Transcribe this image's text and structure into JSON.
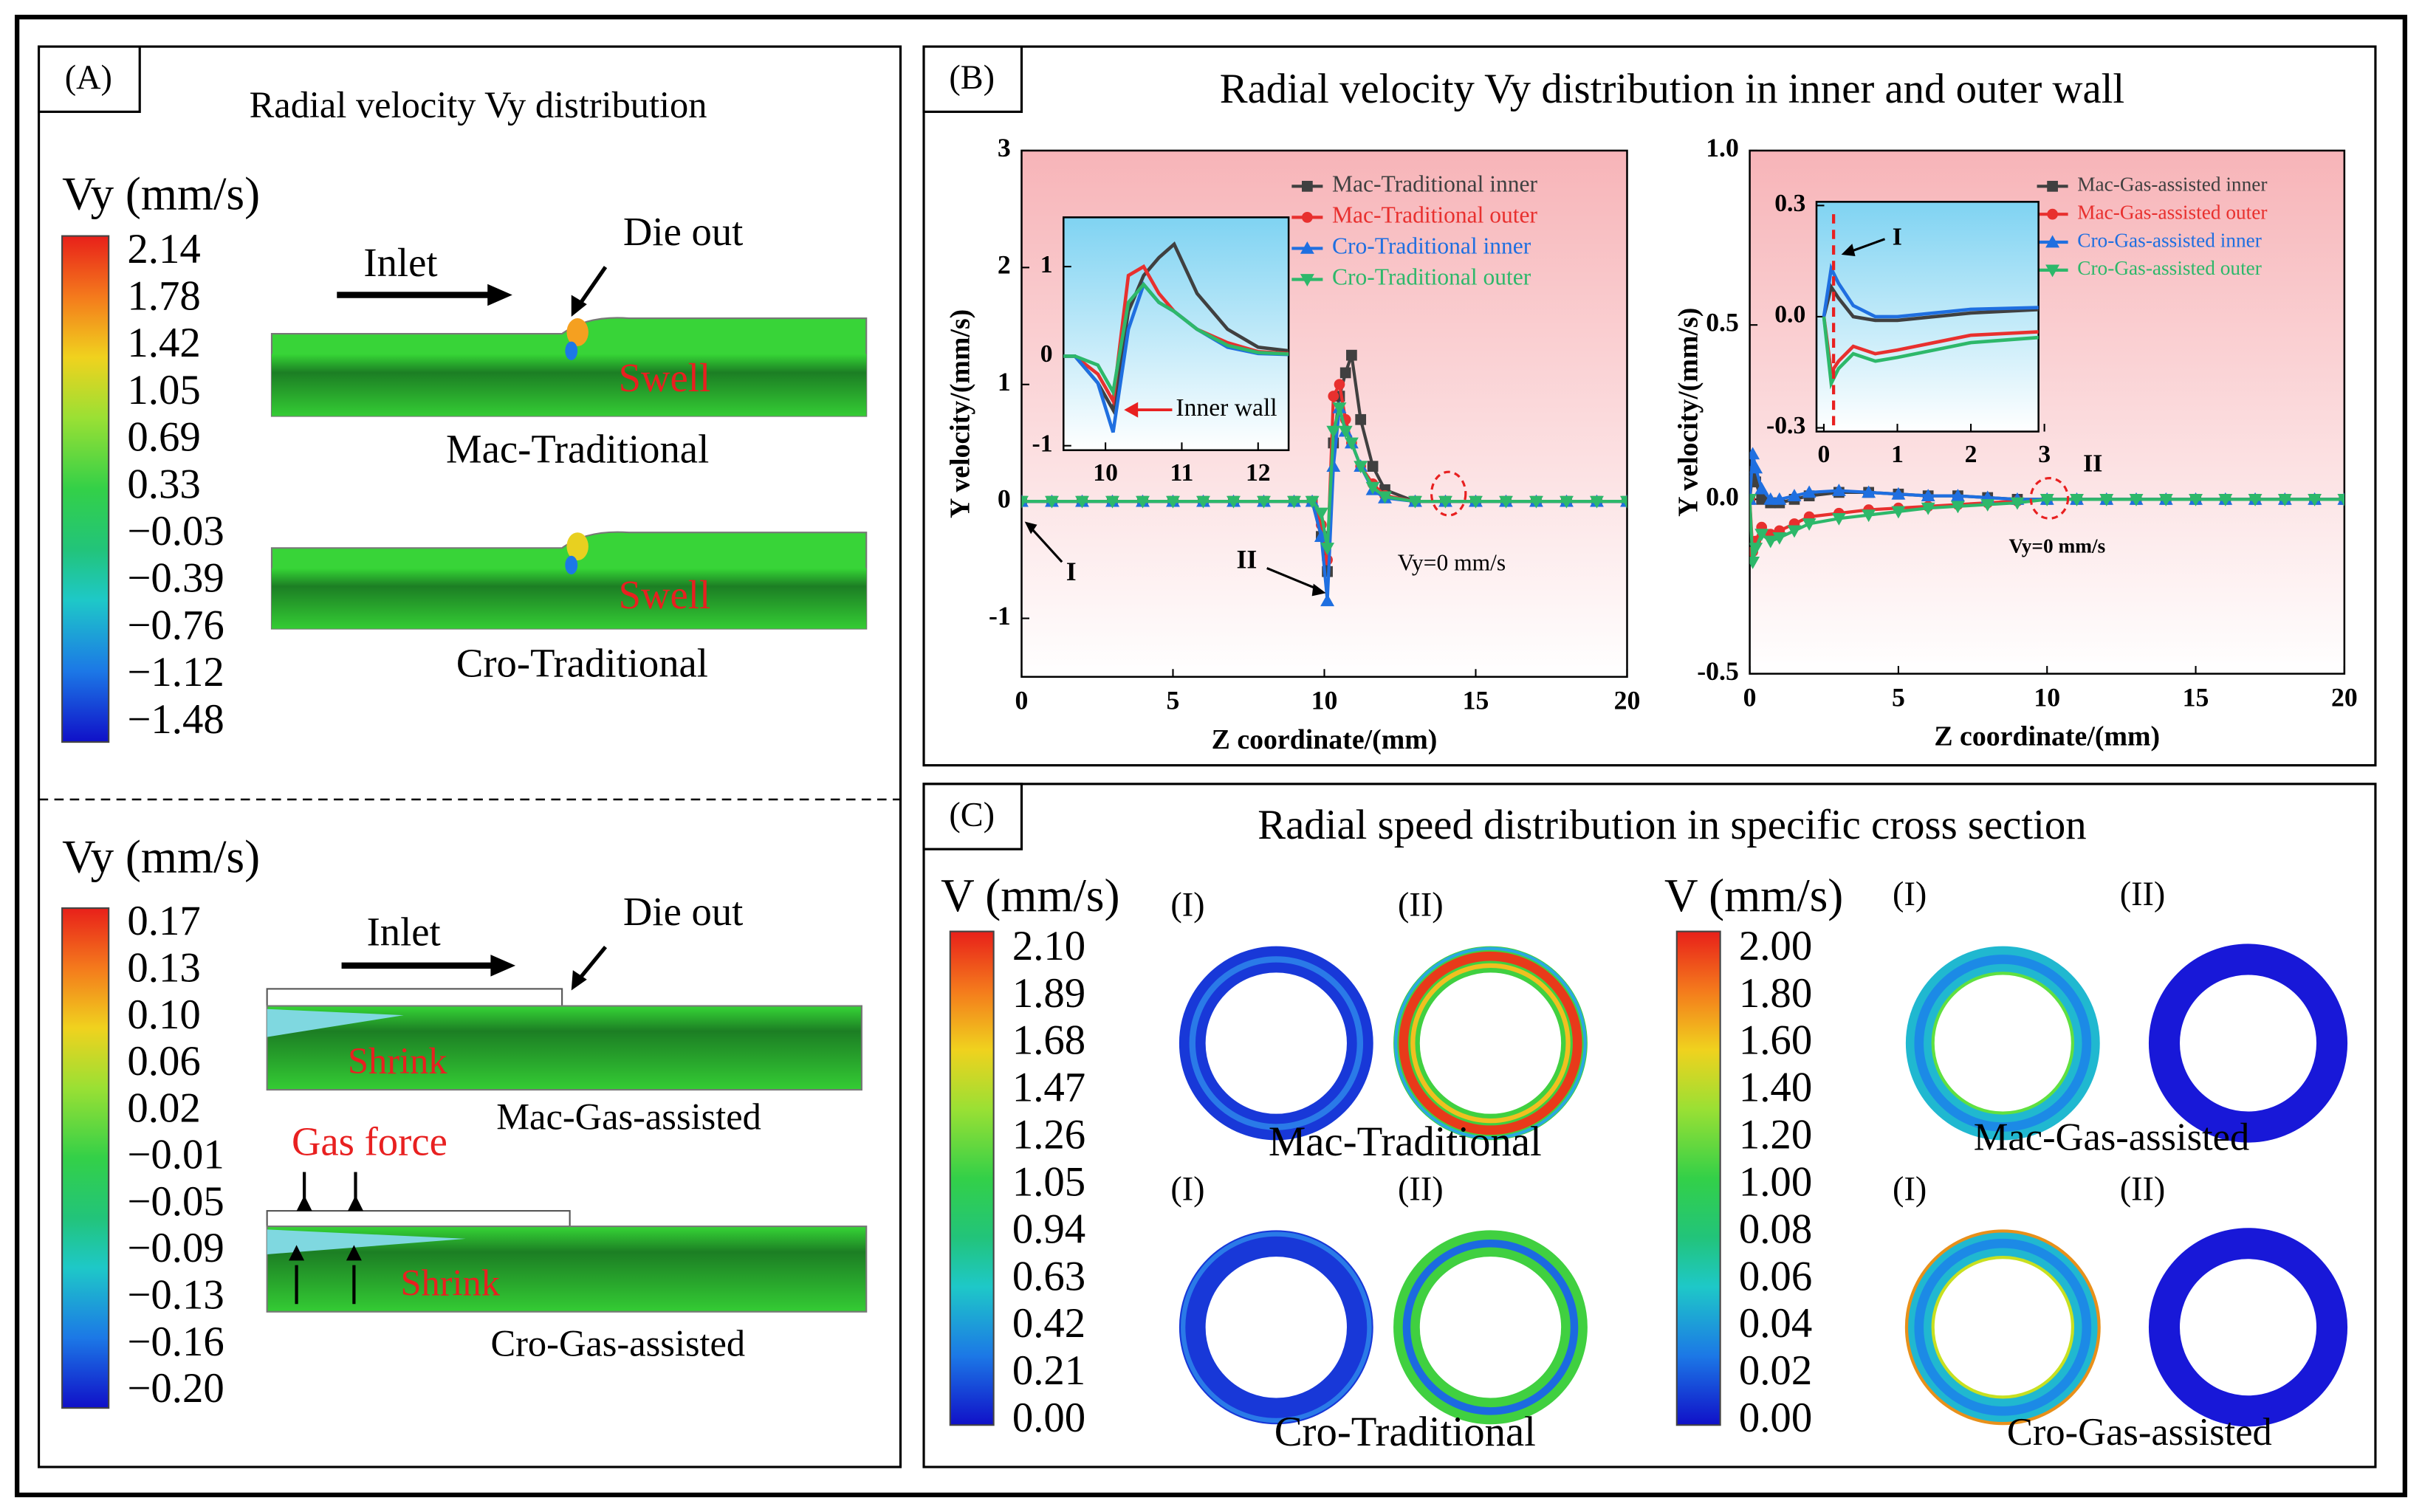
{
  "figure": {
    "panel_a": {
      "label": "(A)",
      "title": "Radial velocity Vy distribution",
      "top": {
        "colorbar_title": "Vy (mm/s)",
        "colorbar_labels": [
          "2.14",
          "1.78",
          "1.42",
          "1.05",
          "0.69",
          "0.33",
          "−0.03",
          "−0.39",
          "−0.76",
          "−1.12",
          "−1.48"
        ],
        "inlet": "Inlet",
        "die_out": "Die out",
        "swell_1": "Swell",
        "case_1": "Mac-Traditional",
        "swell_2": "Swell",
        "case_2": "Cro-Traditional"
      },
      "bottom": {
        "colorbar_title": "Vy (mm/s)",
        "colorbar_labels": [
          "0.17",
          "0.13",
          "0.10",
          "0.06",
          "0.02",
          "−0.01",
          "−0.05",
          "−0.09",
          "−0.13",
          "−0.16",
          "−0.20"
        ],
        "inlet": "Inlet",
        "die_out": "Die out",
        "shrink_1": "Shrink",
        "case_1": "Mac-Gas-assisted",
        "gas_force": "Gas force",
        "shrink_2": "Shrink",
        "case_2": "Cro-Gas-assisted"
      }
    },
    "panel_b": {
      "label": "(B)",
      "title": "Radial velocity Vy distribution in inner and outer wall"
    },
    "panel_c": {
      "label": "(C)",
      "title": "Radial speed distribution in specific cross section",
      "colorbar_1": {
        "title": "V (mm/s)",
        "labels": [
          "2.10",
          "1.89",
          "1.68",
          "1.47",
          "1.26",
          "1.05",
          "0.94",
          "0.63",
          "0.42",
          "0.21",
          "0.00"
        ]
      },
      "colorbar_2": {
        "title": "V (mm/s)",
        "labels": [
          "2.00",
          "1.80",
          "1.60",
          "1.40",
          "1.20",
          "1.00",
          "0.08",
          "0.06",
          "0.04",
          "0.02",
          "0.00"
        ]
      },
      "ring_labels": [
        "(I)",
        "(II)",
        "(I)",
        "(II)",
        "(I)",
        "(II)",
        "(I)",
        "(II)"
      ],
      "captions": [
        "Mac-Traditional",
        "Mac-Gas-assisted",
        "Cro-Traditional",
        "Cro-Gas-assisted"
      ]
    }
  },
  "chart_data": [
    {
      "type": "line",
      "xlabel": "Z coordinate/(mm)",
      "ylabel": "Y velocity/(mm/s)",
      "legend": "upper right",
      "grid": false,
      "x": [
        0,
        1,
        2,
        3,
        4,
        5,
        6,
        7,
        8,
        9,
        9.6,
        9.9,
        10.1,
        10.3,
        10.5,
        10.7,
        10.9,
        11.2,
        11.6,
        12,
        13,
        14,
        15,
        16,
        17,
        18,
        19,
        20
      ],
      "series": [
        {
          "name": "Mac-Traditional inner",
          "color": "#404040",
          "values": [
            0,
            0,
            0,
            0,
            0,
            0,
            0,
            0,
            0,
            0,
            0,
            -0.3,
            -0.6,
            0.5,
            0.9,
            1.1,
            1.25,
            0.7,
            0.3,
            0.1,
            0,
            0,
            0,
            0,
            0,
            0,
            0,
            0
          ]
        },
        {
          "name": "Mac-Traditional outer",
          "color": "#e8302e",
          "values": [
            0,
            0,
            0,
            0,
            0,
            0,
            0,
            0,
            0,
            0,
            0,
            -0.2,
            -0.5,
            0.9,
            1.0,
            0.7,
            0.5,
            0.3,
            0.15,
            0.05,
            0,
            0,
            0,
            0,
            0,
            0,
            0,
            0
          ]
        },
        {
          "name": "Cro-Traditional inner",
          "color": "#1f6fe0",
          "values": [
            0,
            0,
            0,
            0,
            0,
            0,
            0,
            0,
            0,
            0,
            0,
            -0.3,
            -0.85,
            0.3,
            0.8,
            0.6,
            0.5,
            0.3,
            0.1,
            0.03,
            0,
            0,
            0,
            0,
            0,
            0,
            0,
            0
          ]
        },
        {
          "name": "Cro-Traditional outer",
          "color": "#2db86a",
          "values": [
            0,
            0,
            0,
            0,
            0,
            0,
            0,
            0,
            0,
            0,
            0,
            -0.1,
            -0.4,
            0.6,
            0.8,
            0.6,
            0.5,
            0.3,
            0.12,
            0.04,
            0,
            0,
            0,
            0,
            0,
            0,
            0,
            0
          ]
        }
      ],
      "xlim": [
        0,
        20
      ],
      "ylim": [
        -1.5,
        3
      ],
      "xticks": [
        0,
        5,
        10,
        15,
        20
      ],
      "yticks": [
        -1,
        0,
        1,
        2,
        3
      ],
      "inset": {
        "xlim": [
          9.45,
          12.4
        ],
        "ylim": [
          -1.05,
          1.55
        ],
        "xticks": [
          10,
          11,
          12
        ],
        "yticks": [
          -1,
          0,
          1
        ]
      },
      "annotations": [
        "I",
        "II",
        "Vy=0 mm/s",
        "Inner wall"
      ]
    },
    {
      "type": "line",
      "xlabel": "Z coordinate/(mm)",
      "ylabel": "Y velocity/(mm/s)",
      "legend": "upper right",
      "grid": false,
      "x": [
        0,
        0.1,
        0.2,
        0.4,
        0.7,
        1,
        1.5,
        2,
        3,
        4,
        5,
        6,
        7,
        8,
        9,
        10,
        11,
        12,
        13,
        14,
        15,
        16,
        17,
        18,
        19,
        20
      ],
      "series": [
        {
          "name": "Mac-Gas-assisted inner",
          "color": "#404040",
          "values": [
            0,
            0.08,
            0.05,
            0,
            -0.01,
            -0.01,
            0,
            0.01,
            0.02,
            0.02,
            0.015,
            0.01,
            0.01,
            0.005,
            0,
            0,
            0,
            0,
            0,
            0,
            0,
            0,
            0,
            0,
            0,
            0
          ]
        },
        {
          "name": "Mac-Gas-assisted outer",
          "color": "#e8302e",
          "values": [
            0,
            -0.15,
            -0.12,
            -0.08,
            -0.1,
            -0.09,
            -0.07,
            -0.05,
            -0.04,
            -0.03,
            -0.025,
            -0.02,
            -0.015,
            -0.01,
            -0.005,
            0,
            0,
            0,
            0,
            0,
            0,
            0,
            0,
            0,
            0,
            0
          ]
        },
        {
          "name": "Cro-Gas-assisted inner",
          "color": "#1f6fe0",
          "values": [
            0,
            0.13,
            0.09,
            0.03,
            0,
            0,
            0.01,
            0.02,
            0.025,
            0.02,
            0.015,
            0.01,
            0.01,
            0.005,
            0,
            0,
            0,
            0,
            0,
            0,
            0,
            0,
            0,
            0,
            0,
            0
          ]
        },
        {
          "name": "Cro-Gas-assisted outer",
          "color": "#2db86a",
          "values": [
            0,
            -0.18,
            -0.14,
            -0.1,
            -0.12,
            -0.11,
            -0.09,
            -0.07,
            -0.055,
            -0.045,
            -0.035,
            -0.025,
            -0.02,
            -0.015,
            -0.01,
            0,
            0,
            0,
            0,
            0,
            0,
            0,
            0,
            0,
            0,
            0
          ]
        }
      ],
      "xlim": [
        0,
        20
      ],
      "ylim": [
        -0.5,
        1.0
      ],
      "xticks": [
        0,
        5,
        10,
        15,
        20
      ],
      "yticks": [
        -0.5,
        {
          "value": 0,
          "label": "0.0"
        },
        0.5,
        {
          "value": 1,
          "label": "1.0"
        }
      ],
      "inset": {
        "xlim": [
          -0.1,
          2.92
        ],
        "ylim": [
          -0.31,
          0.31
        ],
        "xticks": [
          0,
          1,
          2,
          3
        ],
        "yticks": [
          -0.3,
          {
            "value": 0,
            "label": "0.0"
          },
          0.3
        ]
      },
      "annotations": [
        "I",
        "II",
        "Vy=0 mm/s"
      ]
    }
  ]
}
